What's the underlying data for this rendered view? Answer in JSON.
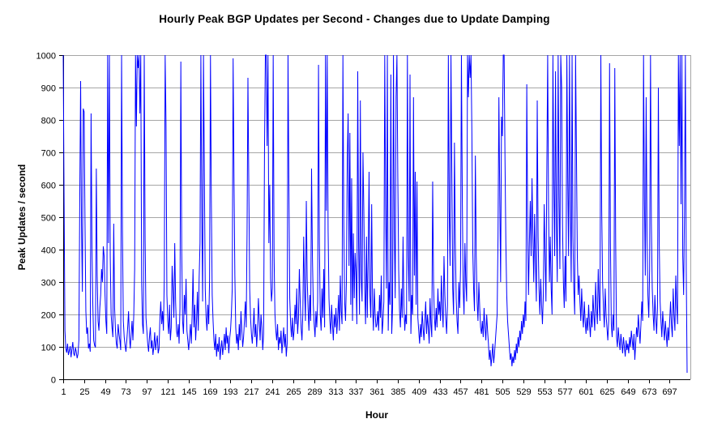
{
  "chart_data": {
    "type": "line",
    "title": "Hourly Peak BGP Updates per Second - Changes due to Update Damping",
    "xlabel": "Hour",
    "ylabel": "Peak Updates / second",
    "ylim": [
      0,
      1000
    ],
    "y_ticks": [
      0,
      100,
      200,
      300,
      400,
      500,
      600,
      700,
      800,
      900,
      1000
    ],
    "x_tick_labels": [
      1,
      25,
      49,
      73,
      97,
      121,
      145,
      169,
      193,
      217,
      241,
      265,
      289,
      313,
      337,
      361,
      385,
      409,
      433,
      457,
      481,
      505,
      529,
      553,
      577,
      601,
      625,
      649,
      673,
      697
    ],
    "x_start_hour": 1,
    "grid": "horizontal-only",
    "legend": "none",
    "series": [
      {
        "color": "#0000ff",
        "values": [
          1000,
          560,
          150,
          95,
          82,
          110,
          75,
          88,
          102,
          68,
          92,
          115,
          80,
          72,
          98,
          85,
          65,
          78,
          120,
          550,
          920,
          480,
          270,
          835,
          825,
          490,
          210,
          140,
          160,
          95,
          110,
          85,
          820,
          410,
          230,
          120,
          105,
          98,
          650,
          320,
          180,
          150,
          220,
          260,
          340,
          300,
          410,
          380,
          260,
          180,
          140,
          1000,
          420,
          1000,
          380,
          200,
          160,
          130,
          480,
          220,
          150,
          110,
          95,
          170,
          140,
          120,
          90,
          1000,
          460,
          180,
          130,
          105,
          85,
          120,
          160,
          210,
          130,
          95,
          140,
          180,
          120,
          200,
          340,
          1000,
          780,
          1000,
          960,
          1000,
          820,
          1000,
          300,
          170,
          140,
          1000,
          430,
          190,
          150,
          110,
          85,
          130,
          160,
          95,
          120,
          75,
          100,
          145,
          90,
          115,
          135,
          80,
          95,
          190,
          240,
          170,
          210,
          150,
          310,
          1000,
          790,
          260,
          180,
          140,
          230,
          120,
          160,
          350,
          280,
          190,
          420,
          240,
          150,
          130,
          170,
          110,
          220,
          980,
          400,
          180,
          140,
          260,
          200,
          310,
          150,
          120,
          90,
          130,
          170,
          110,
          200,
          340,
          160,
          230,
          120,
          180,
          270,
          150,
          310,
          420,
          1000,
          520,
          240,
          1000,
          640,
          280,
          190,
          150,
          230,
          170,
          310,
          1000,
          550,
          260,
          180,
          120,
          90,
          140,
          70,
          110,
          85,
          130,
          60,
          95,
          120,
          75,
          105,
          140,
          90,
          160,
          110,
          135,
          80,
          125,
          150,
          200,
          280,
          990,
          620,
          320,
          160,
          110,
          140,
          90,
          170,
          120,
          210,
          150,
          100,
          130,
          180,
          240,
          160,
          450,
          930,
          600,
          280,
          190,
          140,
          110,
          160,
          220,
          130,
          170,
          100,
          150,
          250,
          180,
          120,
          200,
          160,
          90,
          140,
          700,
          1000,
          1000,
          720,
          1000,
          420,
          600,
          310,
          240,
          280,
          1000,
          380,
          200,
          150,
          120,
          170,
          90,
          130,
          110,
          150,
          80,
          120,
          160,
          100,
          140,
          70,
          110,
          1000,
          600,
          250,
          170,
          130,
          190,
          120,
          150,
          230,
          170,
          280,
          140,
          190,
          340,
          240,
          160,
          120,
          200,
          440,
          280,
          180,
          550,
          310,
          220,
          150,
          260,
          180,
          650,
          380,
          230,
          170,
          130,
          210,
          160,
          240,
          970,
          420,
          200,
          150,
          280,
          190,
          340,
          160,
          1000,
          520,
          1000,
          460,
          250,
          180,
          140,
          230,
          170,
          120,
          200,
          160,
          220,
          140,
          190,
          260,
          150,
          320,
          210,
          170,
          1000,
          480,
          240,
          180,
          300,
          680,
          820,
          350,
          760,
          230,
          620,
          180,
          450,
          250,
          390,
          330,
          170,
          950,
          420,
          200,
          860,
          310,
          240,
          700,
          520,
          280,
          170,
          440,
          190,
          370,
          640,
          260,
          190,
          540,
          230,
          150,
          280,
          200,
          160,
          170,
          210,
          150,
          260,
          190,
          320,
          140,
          180,
          240,
          1000,
          540,
          280,
          1000,
          150,
          300,
          230,
          940,
          140,
          220,
          1000,
          460,
          250,
          870,
          1000,
          620,
          340,
          210,
          160,
          280,
          190,
          440,
          230,
          150,
          200,
          170,
          1000,
          380,
          240,
          940,
          140,
          260,
          200,
          870,
          320,
          640,
          230,
          610,
          190,
          150,
          110,
          170,
          130,
          210,
          160,
          120,
          180,
          240,
          140,
          200,
          160,
          110,
          250,
          170,
          130,
          610,
          300,
          190,
          150,
          220,
          160,
          280,
          200,
          240,
          180,
          320,
          220,
          160,
          380,
          260,
          190,
          140,
          230,
          1000,
          520,
          350,
          1000,
          640,
          280,
          200,
          730,
          420,
          250,
          180,
          140,
          300,
          220,
          340,
          1000,
          560,
          280,
          200,
          420,
          300,
          240,
          1000,
          870,
          1000,
          930,
          1000,
          760,
          400,
          280,
          210,
          690,
          380,
          240,
          180,
          300,
          220,
          160,
          140,
          180,
          130,
          220,
          160,
          120,
          200,
          150,
          110,
          60,
          90,
          40,
          70,
          110,
          50,
          80,
          120,
          160,
          200,
          440,
          870,
          560,
          300,
          810,
          750,
          1000,
          1000,
          680,
          420,
          260,
          180,
          140,
          100,
          60,
          80,
          40,
          70,
          50,
          90,
          60,
          110,
          80,
          130,
          100,
          150,
          120,
          180,
          140,
          200,
          160,
          240,
          180,
          910,
          480,
          260,
          420,
          550,
          380,
          620,
          450,
          300,
          510,
          360,
          240,
          860,
          440,
          280,
          200,
          310,
          230,
          170,
          260,
          540,
          380,
          240,
          640,
          1000,
          520,
          300,
          440,
          280,
          200,
          1000,
          620,
          380,
          950,
          480,
          300,
          1000,
          560,
          340,
          1000,
          900,
          480,
          300,
          220,
          380,
          240,
          1000,
          620,
          380,
          1000,
          540,
          300,
          1000,
          440,
          280,
          200,
          1000,
          700,
          380,
          260,
          320,
          240,
          180,
          280,
          200,
          160,
          240,
          180,
          140,
          190,
          150,
          230,
          170,
          130,
          210,
          160,
          260,
          200,
          150,
          300,
          220,
          170,
          340,
          240,
          180,
          1000,
          520,
          300,
          220,
          160,
          280,
          200,
          160,
          120,
          180,
          975,
          420,
          170,
          130,
          200,
          150,
          960,
          430,
          130,
          100,
          160,
          120,
          90,
          140,
          110,
          80,
          130,
          100,
          70,
          120,
          90,
          110,
          80,
          130,
          100,
          150,
          120,
          90,
          140,
          60,
          110,
          160,
          130,
          200,
          150,
          110,
          170,
          240,
          180,
          1000,
          560,
          320,
          870,
          440,
          260,
          190,
          340,
          1000,
          480,
          280,
          200,
          150,
          260,
          190,
          140,
          220,
          900,
          420,
          240,
          180,
          130,
          210,
          160,
          120,
          180,
          140,
          100,
          160,
          120,
          180,
          240,
          170,
          130,
          280,
          200,
          150,
          320,
          230,
          170,
          1000,
          720,
          1000,
          540,
          1000,
          380,
          260,
          520,
          1000,
          340,
          20
        ]
      }
    ]
  },
  "colors": {
    "series_line": "#0000ff",
    "gridline": "#a6a6a6",
    "axis": "#000000",
    "background": "#ffffff",
    "text": "#000000"
  }
}
